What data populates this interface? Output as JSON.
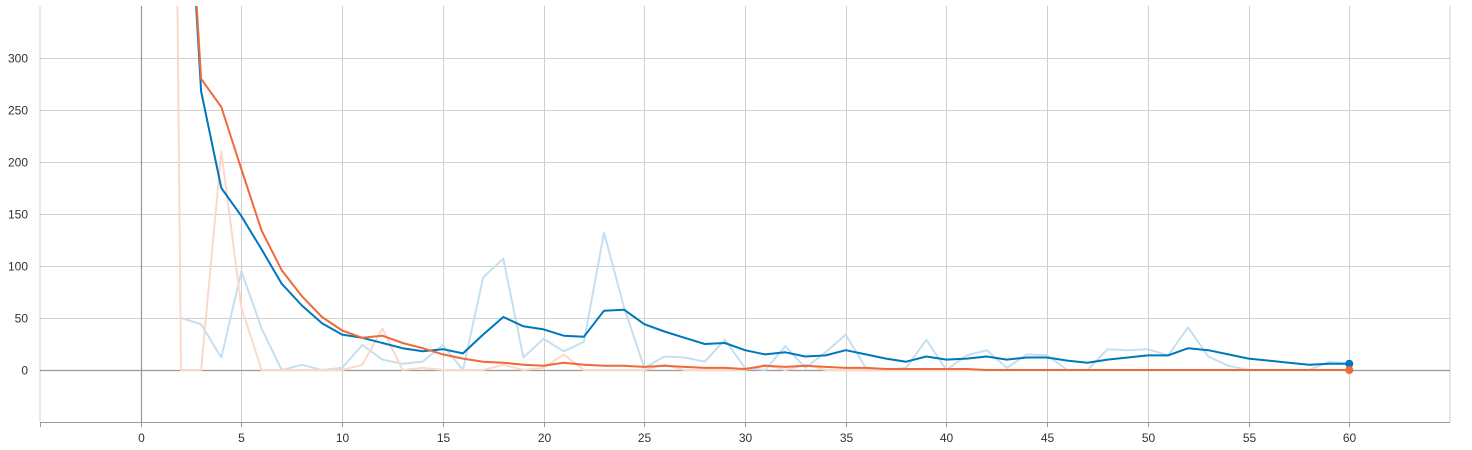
{
  "chart_data": {
    "type": "line",
    "title": "",
    "xlabel": "",
    "ylabel": "",
    "xlim": [
      -5,
      65
    ],
    "ylim": [
      -50,
      350
    ],
    "x_ticks": [
      0,
      5,
      10,
      15,
      20,
      25,
      30,
      35,
      40,
      45,
      50,
      55,
      60
    ],
    "y_ticks": [
      0,
      50,
      100,
      150,
      200,
      250,
      300
    ],
    "grid": true,
    "legend": "none",
    "series": [
      {
        "color": "#0077bb",
        "raw_color": "#c6dff0",
        "smoothed": [
          [
            2,
            600
          ],
          [
            3,
            268
          ],
          [
            4,
            175
          ],
          [
            5,
            148
          ],
          [
            6,
            116
          ],
          [
            7,
            83
          ],
          [
            8,
            62
          ],
          [
            9,
            45
          ],
          [
            10,
            34
          ],
          [
            11,
            31
          ],
          [
            12,
            26
          ],
          [
            13,
            21
          ],
          [
            14,
            18
          ],
          [
            15,
            20
          ],
          [
            16,
            16
          ],
          [
            17,
            34
          ],
          [
            18,
            51
          ],
          [
            19,
            42
          ],
          [
            20,
            39
          ],
          [
            21,
            33
          ],
          [
            22,
            32
          ],
          [
            23,
            57
          ],
          [
            24,
            58
          ],
          [
            25,
            44
          ],
          [
            26,
            37
          ],
          [
            27,
            31
          ],
          [
            28,
            25
          ],
          [
            29,
            26
          ],
          [
            30,
            19
          ],
          [
            31,
            15
          ],
          [
            32,
            17
          ],
          [
            33,
            13
          ],
          [
            34,
            14
          ],
          [
            35,
            19
          ],
          [
            36,
            15
          ],
          [
            37,
            11
          ],
          [
            38,
            8
          ],
          [
            39,
            13
          ],
          [
            40,
            10
          ],
          [
            41,
            11
          ],
          [
            42,
            13
          ],
          [
            43,
            10
          ],
          [
            44,
            12
          ],
          [
            45,
            12
          ],
          [
            46,
            9
          ],
          [
            47,
            7
          ],
          [
            48,
            10
          ],
          [
            49,
            12
          ],
          [
            50,
            14
          ],
          [
            51,
            14
          ],
          [
            52,
            21
          ],
          [
            53,
            19
          ],
          [
            54,
            15
          ],
          [
            55,
            11
          ],
          [
            56,
            9
          ],
          [
            57,
            7
          ],
          [
            58,
            5
          ],
          [
            59,
            6
          ],
          [
            60,
            6
          ]
        ],
        "raw": [
          [
            2,
            50
          ],
          [
            3,
            44
          ],
          [
            4,
            12
          ],
          [
            5,
            95
          ],
          [
            6,
            40
          ],
          [
            7,
            0
          ],
          [
            8,
            5
          ],
          [
            9,
            0
          ],
          [
            10,
            2
          ],
          [
            11,
            24
          ],
          [
            12,
            10
          ],
          [
            13,
            6
          ],
          [
            14,
            8
          ],
          [
            15,
            24
          ],
          [
            16,
            0
          ],
          [
            17,
            89
          ],
          [
            18,
            107
          ],
          [
            19,
            12
          ],
          [
            20,
            30
          ],
          [
            21,
            18
          ],
          [
            22,
            27
          ],
          [
            23,
            132
          ],
          [
            24,
            60
          ],
          [
            25,
            2
          ],
          [
            26,
            13
          ],
          [
            27,
            12
          ],
          [
            28,
            8
          ],
          [
            29,
            29
          ],
          [
            30,
            2
          ],
          [
            31,
            0
          ],
          [
            32,
            23
          ],
          [
            33,
            2
          ],
          [
            34,
            17
          ],
          [
            35,
            34
          ],
          [
            36,
            2
          ],
          [
            37,
            0
          ],
          [
            38,
            2
          ],
          [
            39,
            29
          ],
          [
            40,
            0
          ],
          [
            41,
            14
          ],
          [
            42,
            19
          ],
          [
            43,
            2
          ],
          [
            44,
            15
          ],
          [
            45,
            14
          ],
          [
            46,
            0
          ],
          [
            47,
            0
          ],
          [
            48,
            20
          ],
          [
            49,
            19
          ],
          [
            50,
            20
          ],
          [
            51,
            14
          ],
          [
            52,
            41
          ],
          [
            53,
            13
          ],
          [
            54,
            4
          ],
          [
            55,
            0
          ],
          [
            56,
            0
          ],
          [
            57,
            0
          ],
          [
            58,
            0
          ],
          [
            59,
            8
          ],
          [
            60,
            6
          ]
        ]
      },
      {
        "color": "#ee6a3a",
        "raw_color": "#fad9cc",
        "smoothed": [
          [
            2,
            600
          ],
          [
            3,
            280
          ],
          [
            4,
            253
          ],
          [
            5,
            193
          ],
          [
            6,
            134
          ],
          [
            7,
            96
          ],
          [
            8,
            71
          ],
          [
            9,
            51
          ],
          [
            10,
            38
          ],
          [
            11,
            31
          ],
          [
            12,
            33
          ],
          [
            13,
            26
          ],
          [
            14,
            21
          ],
          [
            15,
            15
          ],
          [
            16,
            11
          ],
          [
            17,
            8
          ],
          [
            18,
            7
          ],
          [
            19,
            5
          ],
          [
            20,
            4
          ],
          [
            21,
            7
          ],
          [
            22,
            5
          ],
          [
            23,
            4
          ],
          [
            24,
            4
          ],
          [
            25,
            3
          ],
          [
            26,
            4
          ],
          [
            27,
            3
          ],
          [
            28,
            2
          ],
          [
            29,
            2
          ],
          [
            30,
            1
          ],
          [
            31,
            4
          ],
          [
            32,
            3
          ],
          [
            33,
            4
          ],
          [
            34,
            3
          ],
          [
            35,
            2
          ],
          [
            36,
            2
          ],
          [
            37,
            1
          ],
          [
            38,
            1
          ],
          [
            39,
            1
          ],
          [
            40,
            1
          ],
          [
            41,
            1
          ],
          [
            42,
            0
          ],
          [
            43,
            0
          ],
          [
            44,
            0
          ],
          [
            45,
            0
          ],
          [
            46,
            0
          ],
          [
            47,
            0
          ],
          [
            48,
            0
          ],
          [
            49,
            0
          ],
          [
            50,
            0
          ],
          [
            51,
            0
          ],
          [
            52,
            0
          ],
          [
            53,
            0
          ],
          [
            54,
            0
          ],
          [
            55,
            0
          ],
          [
            56,
            0
          ],
          [
            57,
            0
          ],
          [
            58,
            0
          ],
          [
            59,
            0
          ],
          [
            60,
            0
          ]
        ],
        "raw": [
          [
            1.7,
            600
          ],
          [
            2,
            0
          ],
          [
            3,
            0
          ],
          [
            4,
            210
          ],
          [
            5,
            60
          ],
          [
            6,
            0
          ],
          [
            7,
            0
          ],
          [
            8,
            0
          ],
          [
            9,
            0
          ],
          [
            10,
            0
          ],
          [
            11,
            5
          ],
          [
            12,
            40
          ],
          [
            13,
            0
          ],
          [
            14,
            2
          ],
          [
            15,
            0
          ],
          [
            16,
            0
          ],
          [
            17,
            0
          ],
          [
            18,
            5
          ],
          [
            19,
            0
          ],
          [
            20,
            2
          ],
          [
            21,
            15
          ],
          [
            22,
            0
          ],
          [
            23,
            0
          ],
          [
            24,
            0
          ],
          [
            25,
            0
          ],
          [
            26,
            5
          ],
          [
            27,
            0
          ],
          [
            28,
            0
          ],
          [
            29,
            0
          ],
          [
            30,
            0
          ],
          [
            31,
            5
          ],
          [
            32,
            0
          ],
          [
            33,
            5
          ],
          [
            34,
            0
          ],
          [
            35,
            0
          ],
          [
            36,
            0
          ],
          [
            37,
            0
          ],
          [
            38,
            0
          ],
          [
            39,
            0
          ],
          [
            40,
            0
          ],
          [
            41,
            0
          ],
          [
            42,
            0
          ],
          [
            43,
            0
          ],
          [
            44,
            0
          ],
          [
            45,
            0
          ],
          [
            46,
            0
          ],
          [
            47,
            0
          ],
          [
            48,
            0
          ],
          [
            49,
            0
          ],
          [
            50,
            0
          ],
          [
            51,
            0
          ],
          [
            52,
            0
          ],
          [
            53,
            0
          ],
          [
            54,
            0
          ],
          [
            55,
            0
          ],
          [
            56,
            0
          ],
          [
            57,
            0
          ],
          [
            58,
            0
          ],
          [
            59,
            0
          ],
          [
            60,
            0
          ]
        ]
      }
    ]
  }
}
